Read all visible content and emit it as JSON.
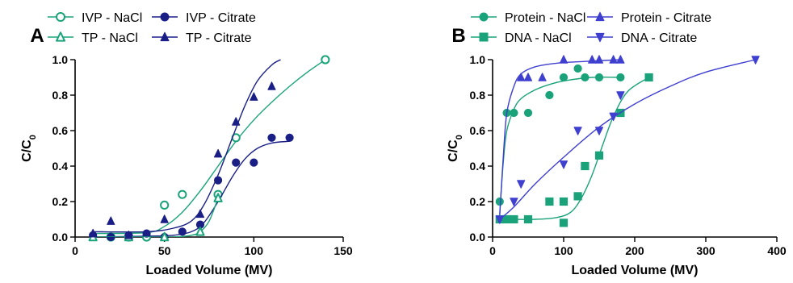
{
  "colors": {
    "teal": "#1aa37a",
    "navy": "#1a1f86",
    "blue": "#3f3fd0",
    "axis": "#000000"
  },
  "chart_data": [
    {
      "panel_label": "A",
      "type": "scatter",
      "xlabel": "Loaded Volume (MV)",
      "ylabel_main": "C/C",
      "ylabel_sub": "0",
      "xlim": [
        0,
        150
      ],
      "ylim": [
        0,
        1.0
      ],
      "xticks": [
        "0",
        "50",
        "100",
        "150"
      ],
      "yticks": [
        "0.0",
        "0.2",
        "0.4",
        "0.6",
        "0.8",
        "1.0"
      ],
      "legend": {
        "placement": "top",
        "columns": 2
      },
      "series": [
        {
          "name": "IVP - NaCl",
          "marker": "circle-open",
          "color": "#1aa37a",
          "points": [
            [
              20,
              0.0
            ],
            [
              30,
              0.0
            ],
            [
              40,
              0.0
            ],
            [
              50,
              0.18
            ],
            [
              60,
              0.24
            ],
            [
              80,
              0.24
            ],
            [
              90,
              0.56
            ],
            [
              140,
              1.0
            ]
          ],
          "fit": [
            [
              10,
              0.02
            ],
            [
              40,
              0.025
            ],
            [
              50,
              0.06
            ],
            [
              60,
              0.14
            ],
            [
              70,
              0.26
            ],
            [
              80,
              0.4
            ],
            [
              90,
              0.54
            ],
            [
              100,
              0.66
            ],
            [
              110,
              0.76
            ],
            [
              120,
              0.85
            ],
            [
              130,
              0.93
            ],
            [
              140,
              1.0
            ]
          ]
        },
        {
          "name": "IVP - Citrate",
          "marker": "circle",
          "color": "#1a1f86",
          "points": [
            [
              10,
              0.01
            ],
            [
              20,
              0.0
            ],
            [
              30,
              0.01
            ],
            [
              40,
              0.02
            ],
            [
              50,
              0.0
            ],
            [
              60,
              0.03
            ],
            [
              70,
              0.07
            ],
            [
              80,
              0.32
            ],
            [
              90,
              0.42
            ],
            [
              100,
              0.42
            ],
            [
              110,
              0.56
            ],
            [
              120,
              0.56
            ]
          ],
          "fit": [
            [
              10,
              0.0
            ],
            [
              40,
              0.005
            ],
            [
              55,
              0.01
            ],
            [
              65,
              0.03
            ],
            [
              72,
              0.08
            ],
            [
              80,
              0.2
            ],
            [
              88,
              0.34
            ],
            [
              95,
              0.44
            ],
            [
              102,
              0.5
            ],
            [
              110,
              0.53
            ],
            [
              120,
              0.54
            ]
          ]
        },
        {
          "name": "TP - NaCl",
          "marker": "triangle-open",
          "color": "#1aa37a",
          "points": [
            [
              10,
              0.0
            ],
            [
              30,
              0.0
            ],
            [
              50,
              0.0
            ],
            [
              70,
              0.03
            ],
            [
              80,
              0.22
            ]
          ],
          "fit": [
            [
              10,
              0.0
            ],
            [
              40,
              0.0
            ],
            [
              55,
              0.0
            ],
            [
              65,
              0.01
            ],
            [
              70,
              0.03
            ],
            [
              75,
              0.09
            ],
            [
              80,
              0.22
            ]
          ]
        },
        {
          "name": "TP - Citrate",
          "marker": "triangle",
          "color": "#1a1f86",
          "points": [
            [
              10,
              0.02
            ],
            [
              20,
              0.09
            ],
            [
              30,
              0.01
            ],
            [
              50,
              0.1
            ],
            [
              70,
              0.13
            ],
            [
              80,
              0.47
            ],
            [
              90,
              0.65
            ],
            [
              100,
              0.79
            ],
            [
              110,
              0.85
            ]
          ],
          "fit": [
            [
              10,
              0.03
            ],
            [
              40,
              0.03
            ],
            [
              55,
              0.05
            ],
            [
              65,
              0.09
            ],
            [
              72,
              0.18
            ],
            [
              80,
              0.35
            ],
            [
              88,
              0.56
            ],
            [
              95,
              0.74
            ],
            [
              102,
              0.88
            ],
            [
              110,
              0.97
            ],
            [
              115,
              1.0
            ]
          ]
        }
      ]
    },
    {
      "panel_label": "B",
      "type": "scatter",
      "xlabel": "Loaded Volume (MV)",
      "ylabel_main": "C/C",
      "ylabel_sub": "0",
      "xlim": [
        0,
        400
      ],
      "ylim": [
        0,
        1.0
      ],
      "xticks": [
        "0",
        "100",
        "200",
        "300",
        "400"
      ],
      "yticks": [
        "0.0",
        "0.2",
        "0.4",
        "0.6",
        "0.8",
        "1.0"
      ],
      "legend": {
        "placement": "top",
        "columns": 2
      },
      "series": [
        {
          "name": "Protein - NaCl",
          "marker": "circle",
          "color": "#1aa37a",
          "points": [
            [
              10,
              0.2
            ],
            [
              20,
              0.7
            ],
            [
              30,
              0.7
            ],
            [
              50,
              0.7
            ],
            [
              80,
              0.8
            ],
            [
              100,
              0.9
            ],
            [
              120,
              0.95
            ],
            [
              130,
              0.9
            ],
            [
              150,
              0.9
            ],
            [
              180,
              0.9
            ]
          ],
          "fit": [
            [
              10,
              0.13
            ],
            [
              15,
              0.42
            ],
            [
              20,
              0.6
            ],
            [
              30,
              0.72
            ],
            [
              40,
              0.78
            ],
            [
              60,
              0.83
            ],
            [
              80,
              0.86
            ],
            [
              100,
              0.88
            ],
            [
              140,
              0.9
            ],
            [
              180,
              0.9
            ]
          ]
        },
        {
          "name": "Protein - Citrate",
          "marker": "triangle",
          "color": "#3f3fd0",
          "points": [
            [
              40,
              0.9
            ],
            [
              50,
              0.9
            ],
            [
              70,
              0.9
            ],
            [
              100,
              1.0
            ],
            [
              140,
              1.0
            ],
            [
              150,
              1.0
            ],
            [
              170,
              1.0
            ],
            [
              180,
              1.0
            ]
          ],
          "fit": [
            [
              10,
              0.12
            ],
            [
              15,
              0.45
            ],
            [
              20,
              0.7
            ],
            [
              30,
              0.85
            ],
            [
              40,
              0.92
            ],
            [
              60,
              0.96
            ],
            [
              90,
              0.98
            ],
            [
              130,
              0.99
            ],
            [
              180,
              1.0
            ]
          ]
        },
        {
          "name": "DNA - NaCl",
          "marker": "square",
          "color": "#1aa37a",
          "points": [
            [
              10,
              0.1
            ],
            [
              20,
              0.1
            ],
            [
              30,
              0.1
            ],
            [
              50,
              0.1
            ],
            [
              80,
              0.2
            ],
            [
              100,
              0.2
            ],
            [
              100,
              0.08
            ],
            [
              120,
              0.23
            ],
            [
              130,
              0.4
            ],
            [
              150,
              0.46
            ],
            [
              180,
              0.7
            ],
            [
              220,
              0.9
            ]
          ],
          "fit": [
            [
              10,
              0.1
            ],
            [
              60,
              0.1
            ],
            [
              90,
              0.11
            ],
            [
              110,
              0.14
            ],
            [
              125,
              0.22
            ],
            [
              140,
              0.35
            ],
            [
              155,
              0.52
            ],
            [
              170,
              0.68
            ],
            [
              190,
              0.82
            ],
            [
              220,
              0.9
            ]
          ]
        },
        {
          "name": "DNA - Citrate",
          "marker": "triangle-down",
          "color": "#3f3fd0",
          "points": [
            [
              10,
              0.1
            ],
            [
              30,
              0.2
            ],
            [
              40,
              0.3
            ],
            [
              100,
              0.41
            ],
            [
              120,
              0.6
            ],
            [
              150,
              0.6
            ],
            [
              170,
              0.68
            ],
            [
              180,
              0.8
            ],
            [
              370,
              1.0
            ]
          ],
          "fit": [
            [
              10,
              0.1
            ],
            [
              30,
              0.17
            ],
            [
              60,
              0.3
            ],
            [
              100,
              0.45
            ],
            [
              150,
              0.62
            ],
            [
              200,
              0.75
            ],
            [
              250,
              0.85
            ],
            [
              300,
              0.93
            ],
            [
              370,
              1.0
            ]
          ]
        }
      ]
    }
  ]
}
